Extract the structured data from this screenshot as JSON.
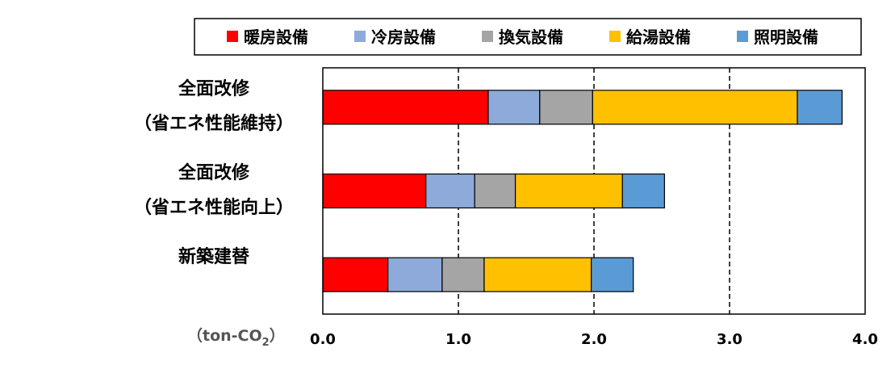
{
  "chart_data": {
    "type": "bar",
    "orientation": "horizontal",
    "stacked": true,
    "categories": [
      "全面改修（省エネ性能維持）",
      "全面改修（省エネ性能向上）",
      "新築建替"
    ],
    "category_lines": [
      [
        "全面改修",
        "（省エネ性能維持）"
      ],
      [
        "全面改修",
        "（省エネ性能向上）"
      ],
      [
        "新築建替"
      ]
    ],
    "series": [
      {
        "name": "暖房設備",
        "color": "#ff0000",
        "values": [
          1.22,
          0.76,
          0.48
        ]
      },
      {
        "name": "冷房設備",
        "color": "#8eaadb",
        "values": [
          0.38,
          0.36,
          0.4
        ]
      },
      {
        "name": "換気設備",
        "color": "#a5a5a5",
        "values": [
          0.39,
          0.3,
          0.31
        ]
      },
      {
        "name": "給湯設備",
        "color": "#ffc000",
        "values": [
          1.51,
          0.79,
          0.79
        ]
      },
      {
        "name": "照明設備",
        "color": "#5b9bd5",
        "values": [
          0.33,
          0.31,
          0.31
        ]
      }
    ],
    "xlim": [
      0,
      4.0
    ],
    "xticks": [
      "0.0",
      "1.0",
      "2.0",
      "3.0",
      "4.0"
    ],
    "tick_values": [
      0,
      1,
      2,
      3,
      4
    ],
    "gridlines": [
      1.0,
      2.0,
      3.0
    ],
    "grid_style": "dashed",
    "xlabel_main": "（ton-CO",
    "xlabel_sub": "2",
    "xlabel_end": "）",
    "legend_position": "top"
  }
}
